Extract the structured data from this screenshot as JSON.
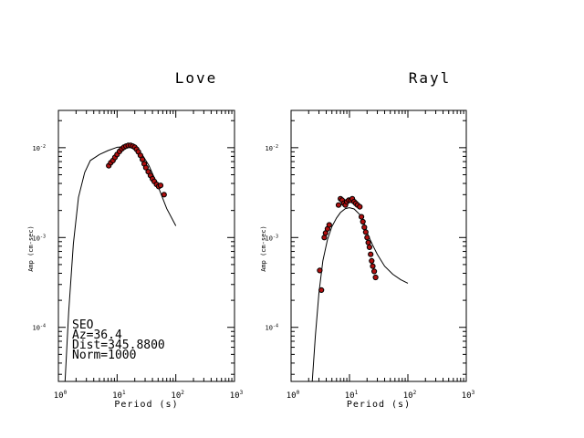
{
  "chart_data": [
    {
      "type": "scatter",
      "title": "Love",
      "xlabel": "Period (s)",
      "ylabel": "Amp (cm-sec)",
      "xscale": "log",
      "yscale": "log",
      "xlim": [
        1,
        1000
      ],
      "ylim": [
        2.5e-05,
        0.026
      ],
      "xticks": [
        {
          "base": "10",
          "exp": "0"
        },
        {
          "base": "10",
          "exp": "1"
        },
        {
          "base": "10",
          "exp": "2"
        },
        {
          "base": "10",
          "exp": "3"
        }
      ],
      "yticks": [
        {
          "value": 0.0001,
          "base": "10",
          "exp": "-4"
        },
        {
          "value": 0.001,
          "base": "10",
          "exp": "-3"
        },
        {
          "value": 0.01,
          "base": "10",
          "exp": "-2"
        }
      ],
      "info": [
        "SEO",
        "Az=36.4",
        "Dist=345.8800",
        "Norm=1000"
      ],
      "series": [
        {
          "kind": "line",
          "color": "#000000",
          "points": [
            [
              1.3,
              2.5e-05
            ],
            [
              1.5,
              0.00015
            ],
            [
              1.8,
              0.00085
            ],
            [
              2.2,
              0.0028
            ],
            [
              2.8,
              0.0053
            ],
            [
              3.5,
              0.0072
            ],
            [
              5,
              0.0084
            ],
            [
              7,
              0.0093
            ],
            [
              10,
              0.0101
            ],
            [
              15,
              0.0103
            ],
            [
              20,
              0.0099
            ],
            [
              27,
              0.0083
            ],
            [
              35,
              0.0063
            ],
            [
              50,
              0.0037
            ],
            [
              70,
              0.0021
            ],
            [
              100,
              0.00135
            ]
          ]
        },
        {
          "kind": "points",
          "color": "#b01010",
          "points": [
            [
              7.2,
              0.0063
            ],
            [
              7.8,
              0.0068
            ],
            [
              8.5,
              0.0072
            ],
            [
              9.2,
              0.0078
            ],
            [
              10,
              0.0084
            ],
            [
              11,
              0.0091
            ],
            [
              12,
              0.0097
            ],
            [
              13,
              0.0101
            ],
            [
              14.2,
              0.0104
            ],
            [
              15.5,
              0.0106
            ],
            [
              17,
              0.0106
            ],
            [
              18.5,
              0.0104
            ],
            [
              20,
              0.0101
            ],
            [
              21.5,
              0.0096
            ],
            [
              23,
              0.009
            ],
            [
              25,
              0.0082
            ],
            [
              27,
              0.0074
            ],
            [
              29,
              0.0066
            ],
            [
              31,
              0.006
            ],
            [
              34,
              0.0054
            ],
            [
              37,
              0.0049
            ],
            [
              40,
              0.0045
            ],
            [
              43,
              0.0042
            ],
            [
              47,
              0.0039
            ],
            [
              51,
              0.0037
            ],
            [
              55,
              0.0038
            ],
            [
              63,
              0.003
            ]
          ]
        }
      ]
    },
    {
      "type": "scatter",
      "title": "Rayl",
      "xlabel": "Period (s)",
      "ylabel": "Amp (cm-sec)",
      "xscale": "log",
      "yscale": "log",
      "xlim": [
        1,
        1000
      ],
      "ylim": [
        2.5e-05,
        0.026
      ],
      "xticks": [
        {
          "base": "10",
          "exp": "0"
        },
        {
          "base": "10",
          "exp": "1"
        },
        {
          "base": "10",
          "exp": "2"
        },
        {
          "base": "10",
          "exp": "3"
        }
      ],
      "yticks": [
        {
          "value": 0.0001,
          "base": "10",
          "exp": "-4"
        },
        {
          "value": 0.001,
          "base": "10",
          "exp": "-3"
        },
        {
          "value": 0.01,
          "base": "10",
          "exp": "-2"
        }
      ],
      "info": [],
      "series": [
        {
          "kind": "line",
          "color": "#000000",
          "points": [
            [
              2.3,
              2.5e-05
            ],
            [
              2.6,
              8e-05
            ],
            [
              3,
              0.00024
            ],
            [
              3.5,
              0.00055
            ],
            [
              4.2,
              0.00095
            ],
            [
              5,
              0.00132
            ],
            [
              6,
              0.00165
            ],
            [
              7,
              0.0019
            ],
            [
              8.5,
              0.0021
            ],
            [
              10,
              0.00215
            ],
            [
              12,
              0.00208
            ],
            [
              15,
              0.0018
            ],
            [
              18,
              0.0014
            ],
            [
              21,
              0.00105
            ],
            [
              25,
              0.00082
            ],
            [
              30,
              0.00065
            ],
            [
              40,
              0.00048
            ],
            [
              55,
              0.00039
            ],
            [
              75,
              0.00034
            ],
            [
              100,
              0.00031
            ]
          ]
        },
        {
          "kind": "points",
          "color": "#b01010",
          "points": [
            [
              3.1,
              0.00043
            ],
            [
              3.3,
              0.00026
            ],
            [
              3.7,
              0.001
            ],
            [
              3.9,
              0.00112
            ],
            [
              4.2,
              0.00125
            ],
            [
              4.5,
              0.00138
            ],
            [
              6.5,
              0.0023
            ],
            [
              7,
              0.0027
            ],
            [
              7.5,
              0.0026
            ],
            [
              8,
              0.0024
            ],
            [
              8.5,
              0.0023
            ],
            [
              9,
              0.0025
            ],
            [
              9.7,
              0.0026
            ],
            [
              10.5,
              0.0026
            ],
            [
              11.2,
              0.0027
            ],
            [
              12,
              0.0025
            ],
            [
              12.8,
              0.0024
            ],
            [
              13.7,
              0.0023
            ],
            [
              15,
              0.0022
            ],
            [
              16,
              0.0017
            ],
            [
              17,
              0.0015
            ],
            [
              18,
              0.0013
            ],
            [
              19,
              0.00115
            ],
            [
              20,
              0.001
            ],
            [
              21,
              0.00088
            ],
            [
              22,
              0.00078
            ],
            [
              23,
              0.00065
            ],
            [
              24,
              0.00055
            ],
            [
              25,
              0.00048
            ],
            [
              26.5,
              0.00042
            ],
            [
              28,
              0.00036
            ]
          ]
        }
      ]
    }
  ]
}
